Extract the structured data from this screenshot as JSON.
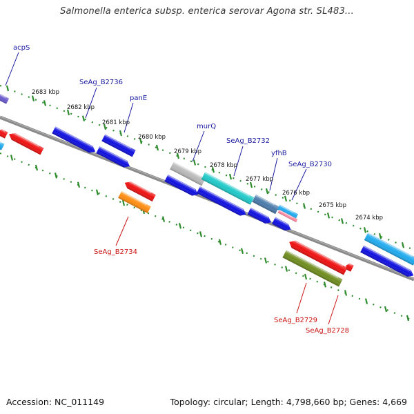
{
  "title": "Salmonella enterica subsp. enterica serovar Agona str. SL483...",
  "footer": {
    "accession": "Accession: NC_011149",
    "summary": "Topology: circular; Length: 4,798,660 bp; Genes: 4,669"
  },
  "kbp_ticks": [
    "2683 kbp",
    "2682 kbp",
    "2681 kbp",
    "2680 kbp",
    "2679 kbp",
    "2678 kbp",
    "2677 kbp",
    "2676 kbp",
    "2675 kbp",
    "2674 kbp"
  ],
  "gene_labels_top": [
    "acpS",
    "SeAg_B2736",
    "panE",
    "murQ",
    "SeAg_B2732",
    "yfhB",
    "SeAg_B2730"
  ],
  "gene_labels_bottom": [
    "SeAg_B2734",
    "SeAg_B2729",
    "SeAg_B2728"
  ],
  "colors": {
    "backbone": "#8a8a8a",
    "dotted_track": "#2e8b2e",
    "label_top": "#1a1aa0",
    "label_bottom": "#cc1111",
    "blue": "#1010e0",
    "red": "#ee1111",
    "cyan": "#20c8c8",
    "sky": "#20aaee",
    "gray": "#b8b8b8",
    "steel": "#4a7aaa",
    "orange": "#ff8c10",
    "olive": "#6e8c1e",
    "pink": "#ff8aa0",
    "purple": "#6a5acd"
  }
}
